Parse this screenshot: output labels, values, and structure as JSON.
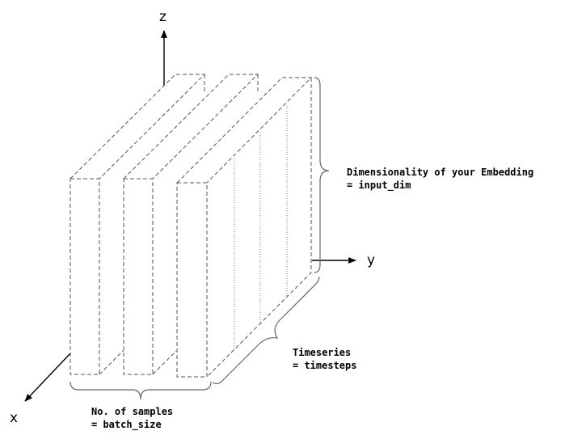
{
  "axes": {
    "z": "z",
    "y": "y",
    "x": "x"
  },
  "annotations": {
    "embedding": {
      "line1": "Dimensionality of your Embedding",
      "line2": "= input_dim"
    },
    "timeseries": {
      "line1": "Timeseries",
      "line2": "= timesteps"
    },
    "samples": {
      "line1": "No. of samples",
      "line2": "= batch_size"
    }
  },
  "colors": {
    "stroke": "#555555",
    "axis": "#000000",
    "background": "#ffffff"
  }
}
